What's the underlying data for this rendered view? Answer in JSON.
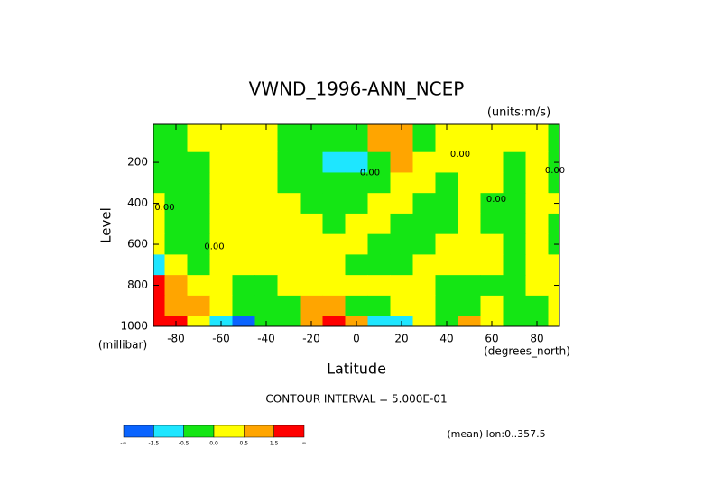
{
  "chart_data": {
    "type": "contour",
    "title": "VWND_1996-ANN_NCEP",
    "units": "(units:m/s)",
    "x_label": "Latitude",
    "x_units": "(degrees_north)",
    "y_label": "Level",
    "y_units": "(millibar)",
    "contour_interval": "CONTOUR INTERVAL = 5.000E-01",
    "note": "(mean) lon:0..357.5",
    "x": [
      -90,
      -80,
      -70,
      -60,
      -50,
      -40,
      -30,
      -20,
      -10,
      0,
      10,
      20,
      30,
      40,
      50,
      60,
      70,
      80,
      90
    ],
    "y": [
      100,
      200,
      300,
      400,
      500,
      600,
      700,
      800,
      900,
      1000
    ],
    "z": [
      [
        -0.2,
        -0.2,
        0.2,
        0.2,
        0.2,
        0.2,
        -0.2,
        -0.2,
        -0.2,
        -0.2,
        0.6,
        0.6,
        -0.2,
        0.2,
        0.2,
        0.2,
        0.2,
        0.2,
        -0.2
      ],
      [
        -0.2,
        -0.2,
        -0.2,
        0.2,
        0.2,
        0.2,
        -0.2,
        -0.2,
        -0.8,
        -0.6,
        -0.2,
        0.7,
        0.2,
        0.2,
        0.2,
        0.2,
        -0.2,
        0.2,
        -0.2
      ],
      [
        -0.2,
        -0.2,
        -0.2,
        0.2,
        0.2,
        0.2,
        -0.2,
        -0.2,
        -0.2,
        -0.2,
        -0.2,
        0.2,
        0.2,
        -0.2,
        0.2,
        0.2,
        -0.2,
        0.2,
        -0.2
      ],
      [
        0.2,
        -0.2,
        -0.2,
        0.2,
        0.2,
        0.2,
        0.2,
        -0.2,
        -0.2,
        -0.2,
        0.2,
        0.2,
        -0.2,
        -0.2,
        0.2,
        -0.2,
        -0.2,
        0.2,
        0.2
      ],
      [
        0.2,
        -0.2,
        -0.2,
        0.2,
        0.2,
        0.2,
        0.2,
        0.2,
        -0.2,
        0.2,
        0.2,
        -0.2,
        -0.2,
        -0.2,
        0.2,
        -0.2,
        -0.2,
        0.2,
        -0.2
      ],
      [
        0.2,
        -0.2,
        -0.2,
        0.2,
        0.2,
        0.2,
        0.2,
        0.2,
        0.2,
        0.2,
        -0.2,
        -0.2,
        -0.2,
        0.2,
        0.2,
        0.2,
        -0.2,
        0.2,
        -0.2
      ],
      [
        -0.8,
        0.2,
        -0.2,
        0.2,
        0.2,
        0.2,
        0.2,
        0.2,
        0.2,
        -0.2,
        -0.2,
        -0.2,
        0.2,
        0.2,
        0.2,
        0.2,
        -0.2,
        0.2,
        0.2
      ],
      [
        1.6,
        0.7,
        0.2,
        0.2,
        -0.2,
        -0.2,
        0.2,
        0.2,
        0.2,
        0.2,
        0.2,
        0.2,
        0.2,
        -0.2,
        -0.2,
        -0.2,
        -0.2,
        0.2,
        0.2
      ],
      [
        1.6,
        1.2,
        0.7,
        0.2,
        -0.2,
        -0.2,
        -0.2,
        0.7,
        0.7,
        -0.2,
        -0.2,
        0.2,
        0.2,
        -0.2,
        -0.2,
        0.2,
        -0.2,
        -0.2,
        0.2
      ],
      [
        1.8,
        1.6,
        0.2,
        -0.8,
        -1.6,
        -0.2,
        -0.2,
        1.0,
        1.8,
        0.7,
        -0.8,
        -0.8,
        0.2,
        -0.2,
        0.7,
        0.2,
        -0.2,
        -0.2,
        0.2
      ]
    ],
    "xlim": [
      -90,
      90
    ],
    "ylim": [
      1000,
      15
    ],
    "xticks": [
      -80,
      -60,
      -40,
      -20,
      0,
      20,
      40,
      60,
      80
    ],
    "yticks": [
      200,
      400,
      600,
      800,
      1000
    ],
    "levels": [
      -1.5,
      -0.5,
      0,
      0.5,
      1.5
    ],
    "colors": [
      "#0a64ff",
      "#1ee6ff",
      "#14e614",
      "#ffff00",
      "#ffa500",
      "#ff0000"
    ],
    "colorbar_labels": [
      "-∞",
      "-1.5",
      "-0.5",
      "0.0",
      "0.5",
      "1.5",
      "∞"
    ],
    "contour_labels": [
      {
        "text": "0.00",
        "lat": -85,
        "level": 420
      },
      {
        "text": "0.00",
        "lat": -63,
        "level": 610
      },
      {
        "text": "0.00",
        "lat": 6,
        "level": 250
      },
      {
        "text": "0.00",
        "lat": 46,
        "level": 160
      },
      {
        "text": "0.00",
        "lat": 62,
        "level": 380
      },
      {
        "text": "0.00",
        "lat": 88,
        "level": 240
      }
    ]
  }
}
